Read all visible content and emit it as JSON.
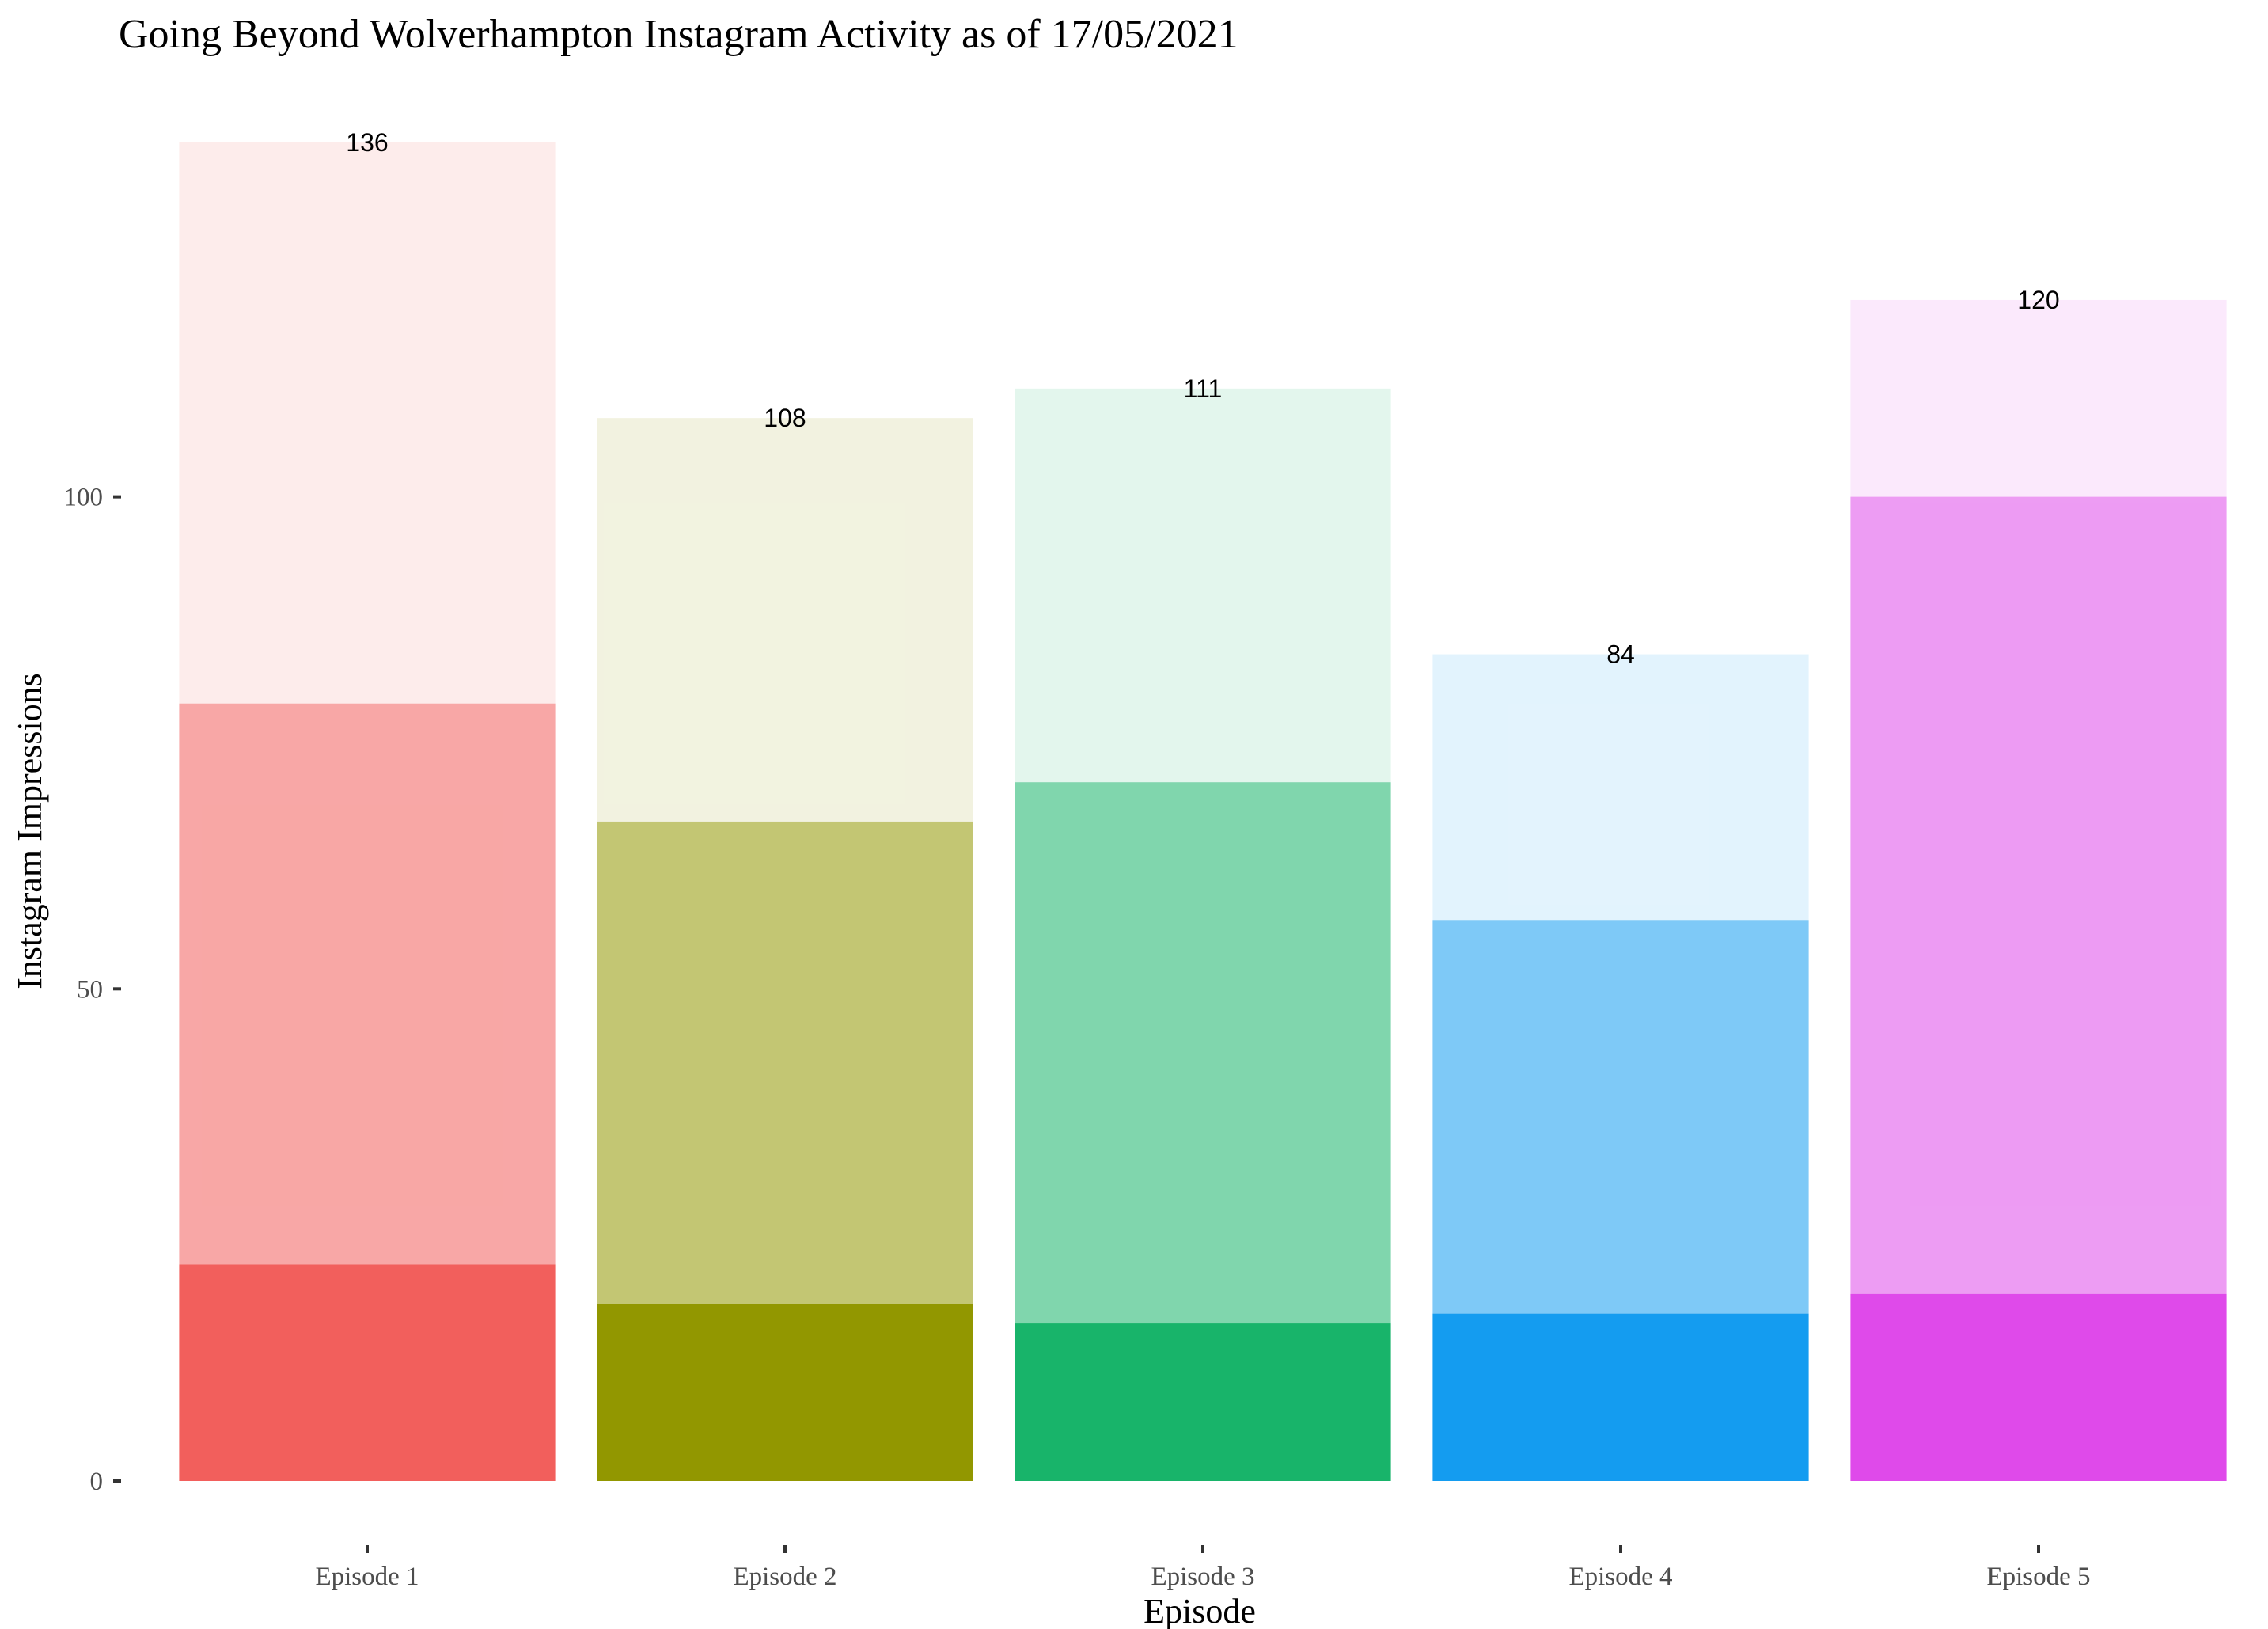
{
  "chart_data": {
    "type": "bar",
    "stacked": true,
    "title": "Going Beyond Wolverhampton Instagram Activity as of 17/05/2021",
    "xlabel": "Episode",
    "ylabel": "Instagram Impressions",
    "categories": [
      "Episode 1",
      "Episode 2",
      "Episode 3",
      "Episode 4",
      "Episode 5"
    ],
    "colors": [
      "#F25F5C",
      "#929700",
      "#18B46A",
      "#149CF0",
      "#DF4AEA"
    ],
    "segment_opacity": [
      1.0,
      0.55,
      0.12
    ],
    "segments": [
      [
        22,
        57,
        57
      ],
      [
        18,
        49,
        41
      ],
      [
        16,
        55,
        40
      ],
      [
        17,
        40,
        27
      ],
      [
        19,
        81,
        20
      ]
    ],
    "totals": [
      136,
      108,
      111,
      84,
      120
    ],
    "yticks": [
      0,
      50,
      100
    ],
    "ylim": [
      0,
      136
    ],
    "grid": false,
    "legend": "none"
  }
}
